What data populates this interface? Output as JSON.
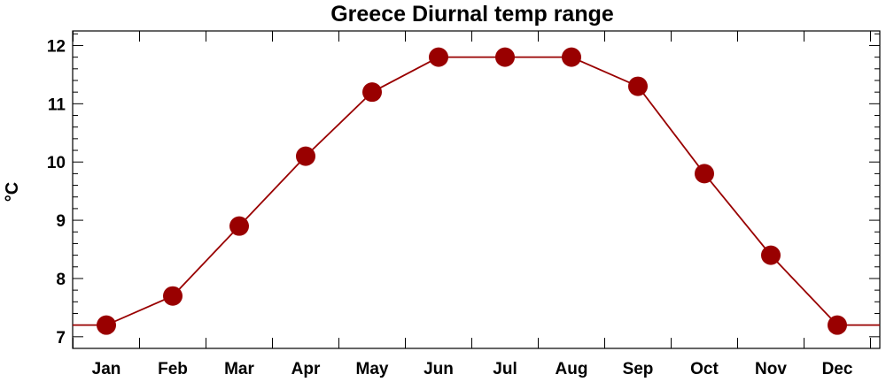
{
  "chart_data": {
    "type": "line",
    "title": "Greece Diurnal temp range",
    "ylabel": "°C",
    "xlabel": "",
    "categories": [
      "Jan",
      "Feb",
      "Mar",
      "Apr",
      "May",
      "Jun",
      "Jul",
      "Aug",
      "Sep",
      "Oct",
      "Nov",
      "Dec"
    ],
    "series": [
      {
        "values": [
          7.2,
          7.7,
          8.9,
          10.1,
          11.2,
          11.8,
          11.8,
          11.8,
          11.3,
          9.8,
          8.4,
          7.2
        ]
      }
    ],
    "ylim": [
      6.8,
      12.25
    ],
    "yticks": [
      7,
      8,
      9,
      10,
      11,
      12
    ],
    "grid": false,
    "legend": "none",
    "line_color": "#990000",
    "marker_color": "#990000"
  }
}
